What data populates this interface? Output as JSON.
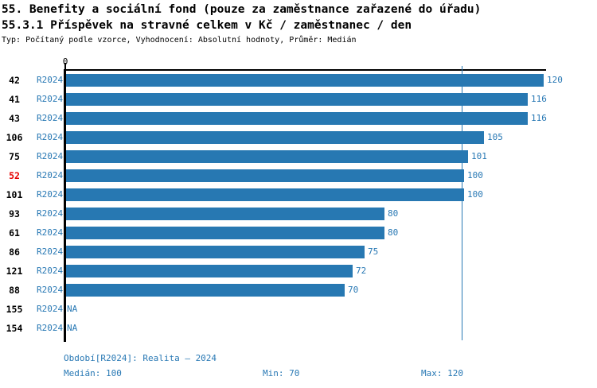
{
  "header": {
    "title_line1": "55. Benefity a sociální fond (pouze za zaměstnance zařazené do úřadu)",
    "title_line2": "55.3.1 Příspěvek na stravné celkem v Kč / zaměstnanec / den",
    "subtitle": "Typ: Počítaný podle vzorce, Vyhodnocení: Absolutní hodnoty, Průměr: Medián"
  },
  "chart_data": {
    "type": "bar",
    "orientation": "horizontal",
    "title": "55.3.1 Příspěvek na stravné celkem v Kč / zaměstnanec / den",
    "categories": [
      "42",
      "41",
      "43",
      "106",
      "75",
      "52",
      "101",
      "93",
      "61",
      "86",
      "121",
      "88",
      "155",
      "154"
    ],
    "row_period_label": "R2024",
    "series": [
      {
        "name": "R2024",
        "values": [
          120,
          116,
          116,
          105,
          101,
          100,
          100,
          80,
          80,
          75,
          72,
          70,
          null,
          null
        ]
      }
    ],
    "value_labels": [
      "120",
      "116",
      "116",
      "105",
      "101",
      "100",
      "100",
      "80",
      "80",
      "75",
      "72",
      "70",
      "NA",
      "NA"
    ],
    "na_label": "NA",
    "highlighted_category": "52",
    "xlim": [
      0,
      120
    ],
    "x_tick_labels": [
      "0"
    ],
    "reference_line": {
      "value": 100,
      "label": "median"
    },
    "grid": false,
    "legend_position": "none"
  },
  "colors": {
    "bar": "#2778b2",
    "blue_text": "#2878b4",
    "highlight_red": "#e60000",
    "axis": "#000000"
  },
  "footer": {
    "period": "Období[R2024]: Realita – 2024",
    "median": "Medián: 100",
    "min": "Min: 70",
    "max": "Max: 120"
  }
}
